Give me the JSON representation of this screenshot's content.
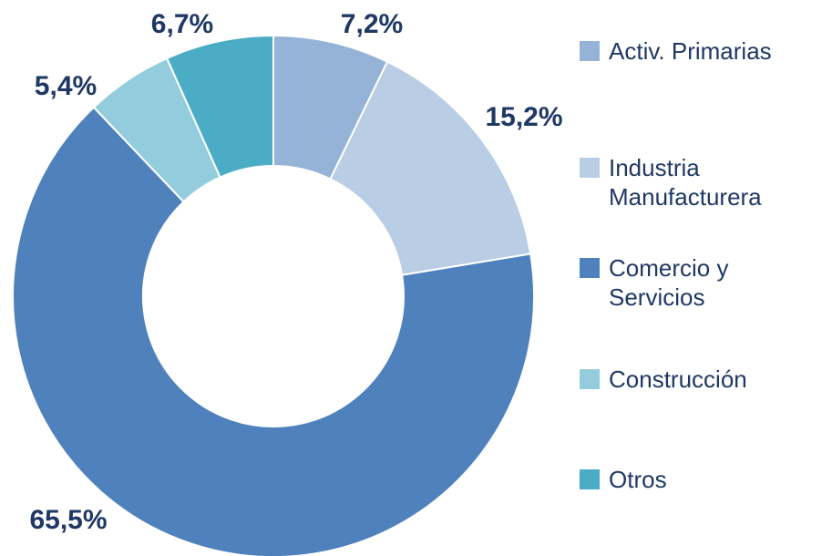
{
  "chart_data": {
    "type": "donut",
    "categories": [
      "Activ. Primarias",
      "Industria Manufacturera",
      "Comercio y Servicios",
      "Construcción",
      "Otros"
    ],
    "values": [
      7.2,
      15.2,
      65.5,
      5.4,
      6.7
    ],
    "value_labels": [
      "7,2%",
      "15,2%",
      "65,5%",
      "5,4%",
      "6,7%"
    ],
    "colors": [
      "#95b3d7",
      "#b9cde5",
      "#4f81bd",
      "#93cddd",
      "#4bacc6"
    ],
    "legend": "right"
  }
}
